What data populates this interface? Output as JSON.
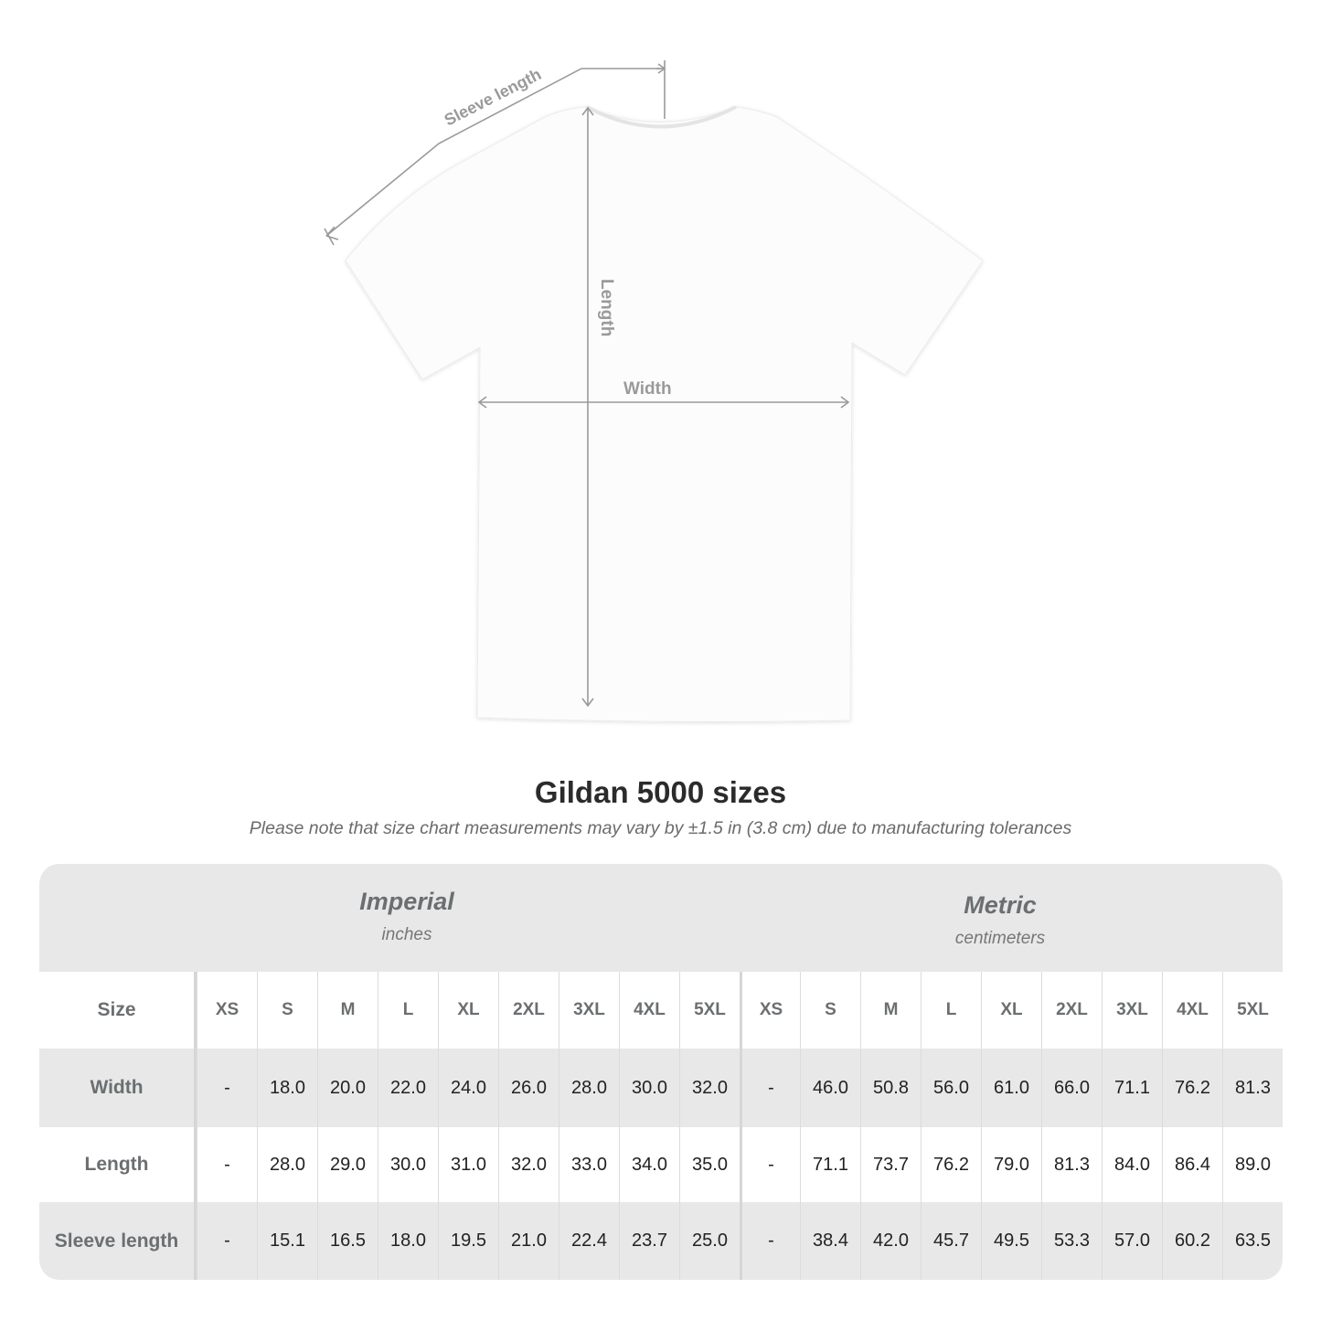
{
  "diagram": {
    "labels": {
      "sleeve": "Sleeve length",
      "length": "Length",
      "width": "Width"
    },
    "line_color": "#9a9a9a"
  },
  "title": "Gildan 5000 sizes",
  "subtitle": "Please note that size chart measurements may vary by ±1.5 in (3.8 cm) due to manufacturing tolerances",
  "table": {
    "imperial": {
      "name": "Imperial",
      "unit": "inches"
    },
    "metric": {
      "name": "Metric",
      "unit": "centimeters"
    },
    "size_label": "Size",
    "sizes": [
      "XS",
      "S",
      "M",
      "L",
      "XL",
      "2XL",
      "3XL",
      "4XL",
      "5XL"
    ],
    "rows": [
      {
        "label": "Width",
        "imperial": [
          "-",
          "18.0",
          "20.0",
          "22.0",
          "24.0",
          "26.0",
          "28.0",
          "30.0",
          "32.0"
        ],
        "metric": [
          "-",
          "46.0",
          "50.8",
          "56.0",
          "61.0",
          "66.0",
          "71.1",
          "76.2",
          "81.3"
        ]
      },
      {
        "label": "Length",
        "imperial": [
          "-",
          "28.0",
          "29.0",
          "30.0",
          "31.0",
          "32.0",
          "33.0",
          "34.0",
          "35.0"
        ],
        "metric": [
          "-",
          "71.1",
          "73.7",
          "76.2",
          "79.0",
          "81.3",
          "84.0",
          "86.4",
          "89.0"
        ]
      },
      {
        "label": "Sleeve length",
        "imperial": [
          "-",
          "15.1",
          "16.5",
          "18.0",
          "19.5",
          "21.0",
          "22.4",
          "23.7",
          "25.0"
        ],
        "metric": [
          "-",
          "38.4",
          "42.0",
          "45.7",
          "49.5",
          "53.3",
          "57.0",
          "60.2",
          "63.5"
        ]
      }
    ]
  }
}
